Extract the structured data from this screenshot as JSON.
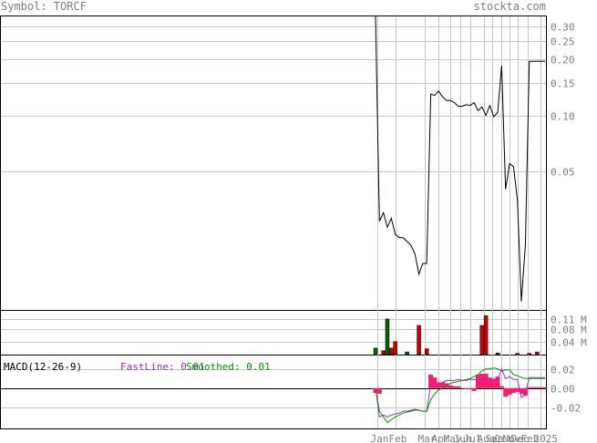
{
  "header": {
    "symbol_label": "Symbol: TORCF",
    "site": "stockta.com"
  },
  "colors": {
    "price_line": "#000000",
    "grid": "#c8c8c8",
    "volume_up": "#006400",
    "volume_down": "#cc0000",
    "fastline": "#9933cc",
    "smoothed": "#009900",
    "histogram": "#ff1a6e",
    "axis_text": "#808080"
  },
  "chart_data": [
    {
      "type": "line",
      "panel": "price",
      "yscale": "log",
      "ylim": [
        0.009,
        0.34
      ],
      "y_ticks": [
        "0.30",
        "0.25",
        "0.20",
        "0.15",
        "0.10",
        "0.05"
      ],
      "y_tick_values": [
        0.3,
        0.25,
        0.2,
        0.15,
        0.1,
        0.05
      ],
      "x_tick_labels": [
        "Jan",
        "Feb",
        "Mar",
        "Apr",
        "May",
        "Jun",
        "Jul",
        "Aug",
        "Sep",
        "Oct",
        "Nov",
        "Dec",
        "Feb",
        "2025"
      ],
      "x": [
        0,
        1,
        2,
        3,
        4,
        5,
        6,
        7,
        8,
        9,
        10,
        11,
        12,
        13,
        14,
        15,
        16,
        17,
        18,
        19,
        20,
        21,
        22,
        23,
        24,
        25,
        26,
        27,
        28,
        29,
        30,
        31,
        32,
        33,
        34,
        35,
        36,
        37,
        38,
        39,
        40,
        41,
        42,
        43
      ],
      "values": [
        0.4,
        0.027,
        0.03,
        0.025,
        0.028,
        0.023,
        0.022,
        0.022,
        0.021,
        0.02,
        0.018,
        0.014,
        0.016,
        0.016,
        0.13,
        0.128,
        0.135,
        0.126,
        0.12,
        0.12,
        0.117,
        0.112,
        0.112,
        0.114,
        0.113,
        0.117,
        0.106,
        0.111,
        0.1,
        0.113,
        0.098,
        0.104,
        0.185,
        0.04,
        0.055,
        0.053,
        0.035,
        0.01,
        0.02,
        0.195,
        0.195,
        0.195,
        0.195,
        0.195
      ]
    },
    {
      "type": "bar",
      "panel": "volume",
      "y_ticks": [
        "0.11 M",
        "0.08 M",
        "0.04 M"
      ],
      "y_tick_values": [
        0.11,
        0.08,
        0.04
      ],
      "ylim": [
        0,
        0.135
      ],
      "unit": "M",
      "bars": [
        {
          "x": 0,
          "value": 0.02,
          "dir": "up"
        },
        {
          "x": 2,
          "value": 0.012,
          "dir": "down"
        },
        {
          "x": 3,
          "value": 0.11,
          "dir": "up"
        },
        {
          "x": 4,
          "value": 0.02,
          "dir": "down"
        },
        {
          "x": 5,
          "value": 0.04,
          "dir": "down"
        },
        {
          "x": 8,
          "value": 0.008,
          "dir": "up"
        },
        {
          "x": 11,
          "value": 0.09,
          "dir": "down"
        },
        {
          "x": 13,
          "value": 0.018,
          "dir": "down"
        },
        {
          "x": 27,
          "value": 0.09,
          "dir": "down"
        },
        {
          "x": 28,
          "value": 0.12,
          "dir": "down"
        },
        {
          "x": 31,
          "value": 0.005,
          "dir": "up"
        },
        {
          "x": 36,
          "value": 0.004,
          "dir": "down"
        },
        {
          "x": 39,
          "value": 0.004,
          "dir": "down"
        },
        {
          "x": 41,
          "value": 0.008,
          "dir": "down"
        }
      ]
    },
    {
      "type": "line",
      "panel": "macd",
      "title": "MACD(12-26-9)",
      "fastline_label": "FastLine: 0.01",
      "smoothed_label": "Smoothed: 0.01",
      "y_ticks": [
        "0.02",
        "0.00",
        "-0.02"
      ],
      "y_tick_values": [
        0.02,
        0.0,
        -0.02
      ],
      "ylim": [
        -0.042,
        0.034
      ],
      "series": [
        {
          "name": "FastLine",
          "values": [
            0.0,
            -0.03,
            -0.028,
            -0.03,
            -0.028,
            -0.027,
            -0.026,
            -0.024,
            -0.024,
            -0.023,
            -0.022,
            -0.023,
            -0.024,
            -0.024,
            0.004,
            0.005,
            0.004,
            0.006,
            0.008,
            0.008,
            0.008,
            0.009,
            0.008,
            0.008,
            0.009,
            0.009,
            0.009,
            0.009,
            0.009,
            0.008,
            0.008,
            0.008,
            0.02,
            0.01,
            0.012,
            0.009,
            0.009,
            -0.01,
            -0.006,
            0.011,
            0.011,
            0.011,
            0.011,
            0.011
          ]
        },
        {
          "name": "Smoothed",
          "values": [
            0.0,
            -0.024,
            -0.03,
            -0.036,
            -0.033,
            -0.03,
            -0.028,
            -0.026,
            -0.025,
            -0.024,
            -0.023,
            -0.023,
            -0.024,
            -0.024,
            -0.012,
            -0.006,
            -0.002,
            0.0,
            0.003,
            0.005,
            0.006,
            0.007,
            0.008,
            0.009,
            0.01,
            0.012,
            0.014,
            0.018,
            0.02,
            0.02,
            0.021,
            0.02,
            0.018,
            0.019,
            0.019,
            0.014,
            0.013,
            0.011,
            0.01,
            0.01,
            0.01,
            0.01,
            0.01,
            0.01
          ]
        }
      ],
      "histogram": [
        -0.005,
        -0.006,
        0,
        0,
        0,
        0,
        0,
        0,
        0,
        0,
        0,
        0,
        0,
        0,
        0.014,
        0.011,
        0.006,
        0.006,
        0.005,
        0.003,
        0.002,
        0.002,
        0.0,
        -0.001,
        -0.001,
        -0.003,
        0.014,
        0.015,
        0.015,
        0.011,
        0.01,
        0.012,
        0.002,
        -0.009,
        -0.007,
        -0.005,
        -0.004,
        -0.006,
        -0.008,
        0.001,
        0.001,
        0.001,
        0.001,
        0.001
      ]
    }
  ]
}
